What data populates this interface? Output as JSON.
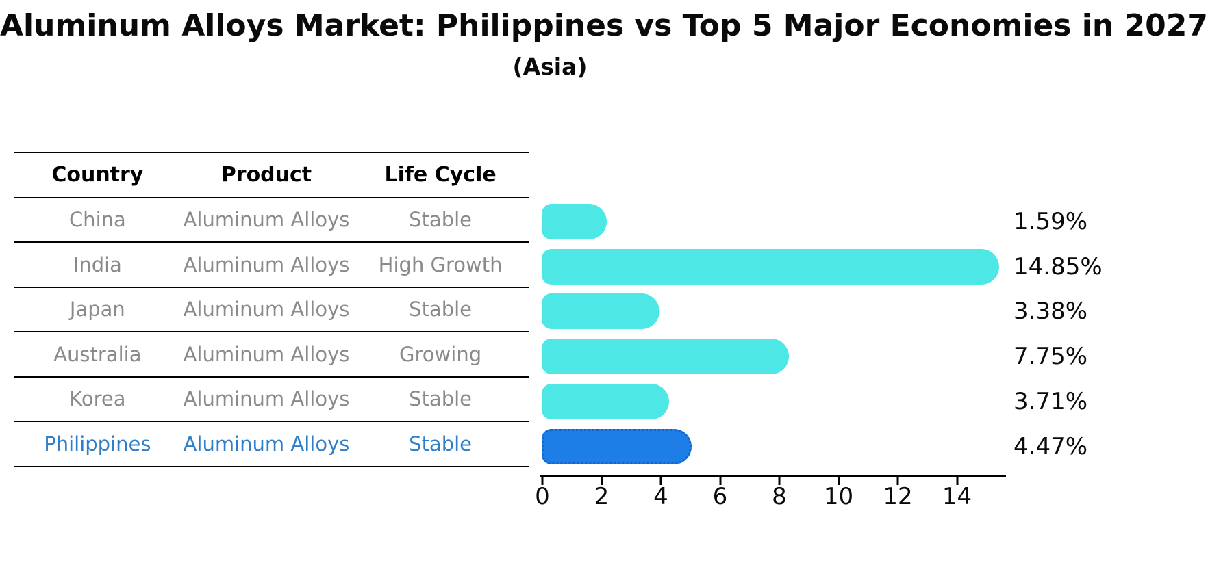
{
  "title": "Aluminum Alloys Market: Philippines vs Top 5 Major Economies in 2027",
  "subtitle": "(Asia)",
  "table": {
    "headers": [
      "Country",
      "Product",
      "Life Cycle"
    ],
    "rows": [
      {
        "country": "China",
        "product": "Aluminum Alloys",
        "life_cycle": "Stable",
        "highlight": false
      },
      {
        "country": "India",
        "product": "Aluminum Alloys",
        "life_cycle": "High Growth",
        "highlight": false
      },
      {
        "country": "Japan",
        "product": "Aluminum Alloys",
        "life_cycle": "Stable",
        "highlight": false
      },
      {
        "country": "Australia",
        "product": "Aluminum Alloys",
        "life_cycle": "Growing",
        "highlight": false
      },
      {
        "country": "Korea",
        "product": "Aluminum Alloys",
        "life_cycle": "Stable",
        "highlight": false
      },
      {
        "country": "Philippines",
        "product": "Aluminum Alloys",
        "life_cycle": "Stable",
        "highlight": true
      }
    ]
  },
  "chart_data": {
    "type": "bar",
    "orientation": "horizontal",
    "title": "Aluminum Alloys Market: Philippines vs Top 5 Major Economies in 2027",
    "subtitle": "(Asia)",
    "categories": [
      "China",
      "India",
      "Japan",
      "Australia",
      "Korea",
      "Philippines"
    ],
    "values": [
      1.59,
      14.85,
      3.38,
      7.75,
      3.71,
      4.47
    ],
    "value_labels": [
      "1.59%",
      "14.85%",
      "3.38%",
      "7.75%",
      "3.71%",
      "4.47%"
    ],
    "x_ticks": [
      0,
      2,
      4,
      6,
      8,
      10,
      12,
      14
    ],
    "xlim": [
      0,
      15.7
    ],
    "grid": false,
    "legend": false,
    "highlight_index": 5,
    "bar_color": "#4de8e6",
    "highlight_bar_color": "#1e7ee8",
    "highlight_border_color": "#1563c9"
  },
  "colors": {
    "background": "#ffffff",
    "text": "#0a0a0a",
    "muted_text": "#8a8a8a",
    "highlight_text": "#2e7ec9",
    "axis": "#000000"
  }
}
